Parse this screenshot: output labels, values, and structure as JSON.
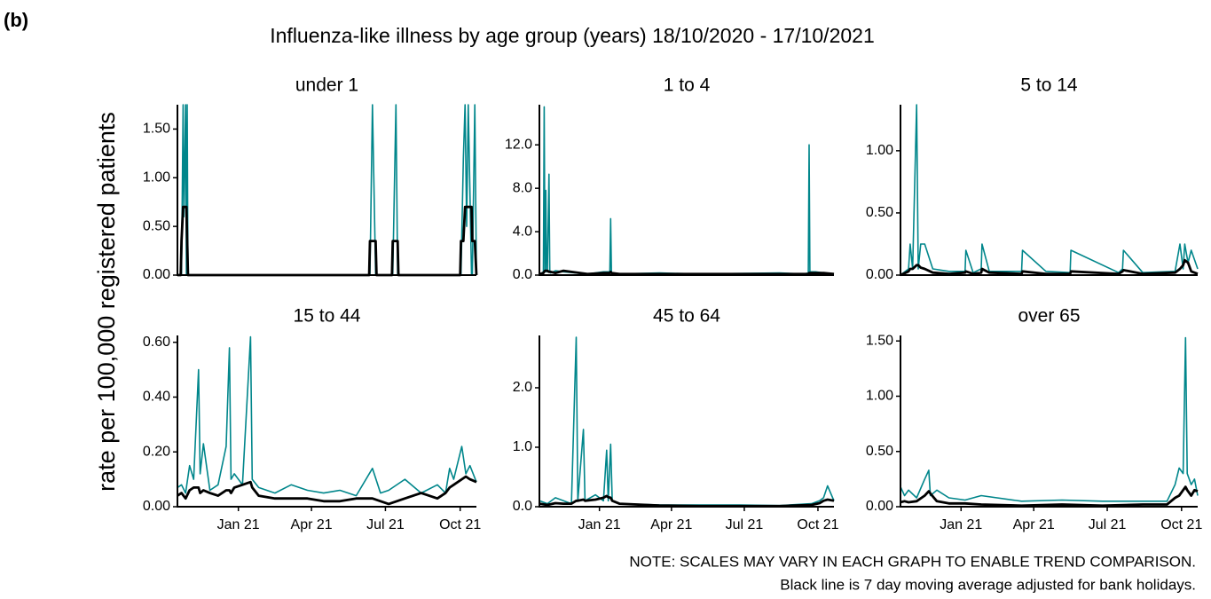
{
  "figure_label": "(b)",
  "title": "Influenza-like illness by age group (years) 18/10/2020 - 17/10/2021",
  "y_label": "rate per 100,000 registered patients",
  "notes": [
    "NOTE: SCALES MAY VARY IN EACH GRAPH TO ENABLE TREND COMPARISON.",
    "Black line is 7 day moving average adjusted for bank holidays."
  ],
  "chart_data": [
    {
      "type": "line",
      "title": "under 1",
      "xlim": [
        0,
        368
      ],
      "ylim": [
        0,
        1.75
      ],
      "yticks": [
        {
          "value": 0,
          "label": "0.00"
        },
        {
          "value": 0.5,
          "label": "0.50"
        },
        {
          "value": 1,
          "label": "1.00"
        },
        {
          "value": 1.5,
          "label": "1.50"
        }
      ],
      "x": [
        0,
        4,
        5,
        7,
        8,
        10,
        11,
        12,
        13,
        236,
        237,
        240,
        244,
        245,
        264,
        265,
        269,
        271,
        272,
        348,
        349,
        352,
        354,
        356,
        358,
        362,
        363,
        366,
        368
      ],
      "series": [
        {
          "color": "#00868b",
          "values": [
            0,
            0,
            0,
            1.75,
            0.6,
            1.75,
            0,
            1.75,
            0,
            0,
            0,
            1.75,
            0,
            0,
            0,
            0,
            1.75,
            0,
            0,
            0,
            0,
            1.2,
            1.75,
            0.5,
            1.75,
            0,
            0,
            1.75,
            0
          ]
        },
        {
          "color": "#000000",
          "values": [
            0,
            0,
            0.35,
            0.7,
            0.7,
            0.7,
            0.7,
            0.35,
            0,
            0,
            0.35,
            0.35,
            0.35,
            0,
            0,
            0.35,
            0.35,
            0.35,
            0,
            0,
            0.35,
            0.35,
            0.7,
            0.7,
            0.7,
            0.7,
            0.35,
            0.35,
            0
          ]
        }
      ]
    },
    {
      "type": "line",
      "title": "1 to 4",
      "xlim": [
        0,
        368
      ],
      "ylim": [
        0,
        15.7
      ],
      "yticks": [
        {
          "value": 0,
          "label": "0.0"
        },
        {
          "value": 4,
          "label": "4.0"
        },
        {
          "value": 8,
          "label": "8.0"
        },
        {
          "value": 12,
          "label": "12.0"
        }
      ],
      "x": [
        0,
        5,
        6,
        7,
        8,
        9,
        10,
        12,
        13,
        14,
        20,
        30,
        60,
        80,
        88,
        89,
        90,
        100,
        150,
        200,
        300,
        330,
        336,
        337,
        338,
        345,
        355,
        368
      ],
      "series": [
        {
          "color": "#00868b",
          "values": [
            0,
            0.3,
            15.5,
            0.3,
            7.8,
            0.3,
            0.3,
            9.3,
            0.3,
            0.2,
            0.4,
            0.3,
            0.1,
            0.3,
            0.3,
            5.2,
            0.2,
            0.1,
            0.2,
            0.1,
            0.2,
            0.1,
            0.2,
            12,
            0.3,
            0.3,
            0.2,
            0.1
          ]
        },
        {
          "color": "#000000",
          "values": [
            0.1,
            0.2,
            0.3,
            0.4,
            0.4,
            0.4,
            0.4,
            0.3,
            0.3,
            0.3,
            0.2,
            0.4,
            0.1,
            0.2,
            0.2,
            0.3,
            0.2,
            0.1,
            0.1,
            0.1,
            0.1,
            0.1,
            0.1,
            0.2,
            0.2,
            0.2,
            0.2,
            0.1
          ]
        }
      ]
    },
    {
      "type": "line",
      "title": "5 to 14",
      "xlim": [
        0,
        368
      ],
      "ylim": [
        0,
        1.37
      ],
      "yticks": [
        {
          "value": 0,
          "label": "0.00"
        },
        {
          "value": 0.5,
          "label": "0.50"
        },
        {
          "value": 1,
          "label": "1.00"
        }
      ],
      "x": [
        0,
        10,
        12,
        15,
        20,
        22,
        25,
        30,
        40,
        60,
        80,
        81,
        90,
        100,
        101,
        110,
        150,
        151,
        180,
        210,
        211,
        270,
        275,
        276,
        300,
        340,
        346,
        350,
        352,
        356,
        360,
        368
      ],
      "series": [
        {
          "color": "#00868b",
          "values": [
            0,
            0.05,
            0.25,
            0.05,
            1.37,
            0.05,
            0.25,
            0.25,
            0.05,
            0.03,
            0.03,
            0.2,
            0.02,
            0.05,
            0.25,
            0.03,
            0.03,
            0.2,
            0.03,
            0.02,
            0.2,
            0.02,
            0.05,
            0.2,
            0.02,
            0.03,
            0.25,
            0.05,
            0.25,
            0.1,
            0.2,
            0.05
          ]
        },
        {
          "color": "#000000",
          "values": [
            0,
            0.03,
            0.05,
            0.05,
            0.08,
            0.08,
            0.06,
            0.05,
            0.02,
            0.01,
            0.02,
            0.03,
            0.01,
            0.02,
            0.05,
            0.02,
            0.01,
            0.03,
            0.01,
            0.01,
            0.03,
            0.01,
            0.03,
            0.04,
            0.01,
            0.02,
            0.05,
            0.08,
            0.12,
            0.1,
            0.03,
            0.01
          ]
        }
      ]
    },
    {
      "type": "line",
      "title": "15 to 44",
      "xlim": [
        0,
        368
      ],
      "ylim": [
        0,
        0.625
      ],
      "yticks": [
        {
          "value": 0,
          "label": "0.00"
        },
        {
          "value": 0.2,
          "label": "0.20"
        },
        {
          "value": 0.4,
          "label": "0.40"
        },
        {
          "value": 0.6,
          "label": "0.60"
        }
      ],
      "xticks": [
        {
          "value": 75,
          "label": "Jan 21"
        },
        {
          "value": 165,
          "label": "Apr 21"
        },
        {
          "value": 256,
          "label": "Jul 21"
        },
        {
          "value": 348,
          "label": "Oct 21"
        }
      ],
      "x": [
        0,
        5,
        10,
        15,
        20,
        26,
        28,
        32,
        40,
        50,
        60,
        64,
        66,
        70,
        80,
        90,
        92,
        100,
        120,
        140,
        160,
        180,
        200,
        220,
        240,
        250,
        260,
        280,
        300,
        320,
        330,
        335,
        340,
        350,
        355,
        360,
        368
      ],
      "series": [
        {
          "color": "#00868b",
          "values": [
            0.07,
            0.08,
            0.05,
            0.15,
            0.1,
            0.5,
            0.12,
            0.23,
            0.06,
            0.08,
            0.22,
            0.58,
            0.1,
            0.12,
            0.08,
            0.62,
            0.1,
            0.07,
            0.05,
            0.08,
            0.06,
            0.05,
            0.06,
            0.04,
            0.14,
            0.05,
            0.06,
            0.1,
            0.05,
            0.08,
            0.05,
            0.14,
            0.1,
            0.22,
            0.12,
            0.15,
            0.09
          ]
        },
        {
          "color": "#000000",
          "values": [
            0.04,
            0.05,
            0.03,
            0.06,
            0.07,
            0.07,
            0.05,
            0.06,
            0.05,
            0.04,
            0.06,
            0.06,
            0.05,
            0.07,
            0.08,
            0.09,
            0.07,
            0.04,
            0.03,
            0.03,
            0.03,
            0.02,
            0.02,
            0.03,
            0.03,
            0.02,
            0.01,
            0.03,
            0.05,
            0.03,
            0.05,
            0.07,
            0.08,
            0.1,
            0.11,
            0.1,
            0.09
          ]
        }
      ]
    },
    {
      "type": "line",
      "title": "45 to 64",
      "xlim": [
        0,
        368
      ],
      "ylim": [
        0,
        2.88
      ],
      "yticks": [
        {
          "value": 0,
          "label": "0.0"
        },
        {
          "value": 1,
          "label": "1.0"
        },
        {
          "value": 2,
          "label": "2.0"
        }
      ],
      "xticks": [
        {
          "value": 75,
          "label": "Jan 21"
        },
        {
          "value": 165,
          "label": "Apr 21"
        },
        {
          "value": 256,
          "label": "Jul 21"
        },
        {
          "value": 348,
          "label": "Oct 21"
        }
      ],
      "x": [
        0,
        10,
        20,
        30,
        40,
        46,
        48,
        55,
        57,
        70,
        80,
        84,
        86,
        89,
        91,
        100,
        150,
        200,
        250,
        300,
        340,
        350,
        355,
        360,
        368
      ],
      "series": [
        {
          "color": "#00868b",
          "values": [
            0.1,
            0.05,
            0.15,
            0.1,
            0.05,
            2.85,
            0.1,
            1.3,
            0.1,
            0.2,
            0.1,
            0.95,
            0.1,
            1.05,
            0.1,
            0.05,
            0.03,
            0.03,
            0.03,
            0.02,
            0.05,
            0.1,
            0.15,
            0.35,
            0.1
          ]
        },
        {
          "color": "#000000",
          "values": [
            0.05,
            0.03,
            0.06,
            0.05,
            0.05,
            0.1,
            0.1,
            0.12,
            0.1,
            0.12,
            0.15,
            0.18,
            0.16,
            0.15,
            0.1,
            0.05,
            0.02,
            0.01,
            0.01,
            0.01,
            0.03,
            0.06,
            0.1,
            0.12,
            0.1
          ]
        }
      ]
    },
    {
      "type": "line",
      "title": "over 65",
      "xlim": [
        0,
        368
      ],
      "ylim": [
        0,
        1.55
      ],
      "yticks": [
        {
          "value": 0,
          "label": "0.00"
        },
        {
          "value": 0.5,
          "label": "0.50"
        },
        {
          "value": 1,
          "label": "1.00"
        },
        {
          "value": 1.5,
          "label": "1.50"
        }
      ],
      "xticks": [
        {
          "value": 75,
          "label": "Jan 21"
        },
        {
          "value": 165,
          "label": "Apr 21"
        },
        {
          "value": 256,
          "label": "Jul 21"
        },
        {
          "value": 348,
          "label": "Oct 21"
        }
      ],
      "x": [
        0,
        5,
        10,
        20,
        30,
        35,
        37,
        45,
        60,
        80,
        100,
        150,
        200,
        250,
        300,
        330,
        340,
        345,
        350,
        353,
        355,
        360,
        364,
        368
      ],
      "series": [
        {
          "color": "#00868b",
          "values": [
            0.18,
            0.1,
            0.15,
            0.08,
            0.25,
            0.33,
            0.1,
            0.15,
            0.08,
            0.06,
            0.1,
            0.05,
            0.06,
            0.05,
            0.05,
            0.05,
            0.2,
            0.35,
            0.3,
            1.53,
            0.3,
            0.2,
            0.25,
            0.1
          ]
        },
        {
          "color": "#000000",
          "values": [
            0.04,
            0.05,
            0.04,
            0.05,
            0.1,
            0.14,
            0.12,
            0.05,
            0.03,
            0.03,
            0.02,
            0.01,
            0.02,
            0.01,
            0.02,
            0.02,
            0.08,
            0.1,
            0.15,
            0.18,
            0.15,
            0.1,
            0.15,
            0.14
          ]
        }
      ]
    }
  ]
}
